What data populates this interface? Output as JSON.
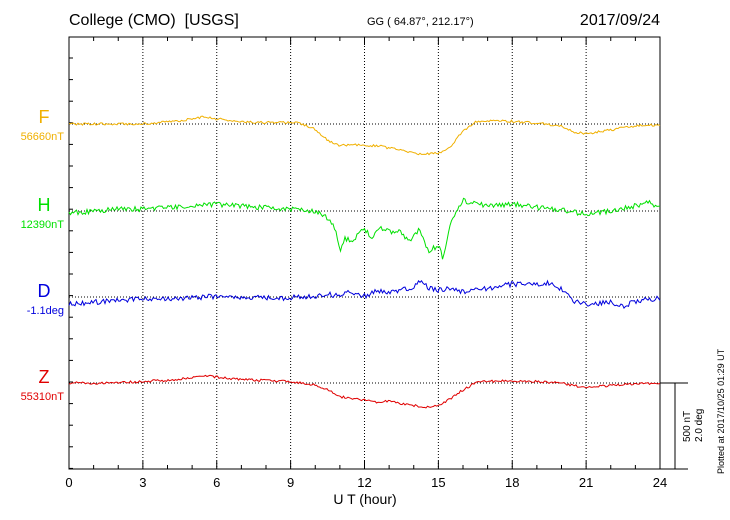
{
  "header": {
    "station": "College (CMO)  [USGS]",
    "coords": "GG ( 64.87°, 212.17°)",
    "date": "2017/09/24"
  },
  "footer": {
    "plotted": "Plotted at 2017/10/25 01:29 UT"
  },
  "scale": {
    "nt": "500 nT",
    "deg": "2.0 deg"
  },
  "chart_data": {
    "type": "line",
    "title": "College (CMO)  [USGS]",
    "xlabel": "U T (hour)",
    "xlim": [
      0,
      24
    ],
    "xticks": [
      0,
      3,
      6,
      9,
      12,
      15,
      18,
      21,
      24
    ],
    "grid": true,
    "series": [
      {
        "name": "F",
        "baseline_label": "56660nT",
        "color": "#f0b000",
        "hours": [
          0,
          1,
          2,
          3,
          4,
          5,
          5.5,
          6,
          7,
          8,
          9,
          9.5,
          10,
          10.5,
          11,
          11.5,
          12,
          12.5,
          13,
          13.5,
          14,
          14.5,
          15,
          15.5,
          16,
          16.5,
          17,
          18,
          19,
          20,
          20.5,
          21,
          22,
          23,
          24
        ],
        "offset_nt": [
          0,
          0,
          1,
          1,
          12,
          28,
          45,
          30,
          12,
          8,
          10,
          0,
          -30,
          -95,
          -125,
          -120,
          -128,
          -125,
          -140,
          -150,
          -170,
          -175,
          -170,
          -130,
          -40,
          10,
          20,
          15,
          5,
          -10,
          -50,
          -55,
          -35,
          -10,
          -5
        ]
      },
      {
        "name": "H",
        "baseline_label": "12390nT",
        "color": "#00e000",
        "hours": [
          0,
          1,
          2,
          3,
          4,
          5,
          6,
          7,
          8,
          9,
          10,
          10.5,
          10.8,
          11,
          11.2,
          11.5,
          12,
          12.3,
          12.6,
          13,
          13.4,
          13.8,
          14.2,
          14.6,
          15,
          15.2,
          15.5,
          16,
          17,
          18,
          19,
          20,
          21,
          22,
          23,
          23.5,
          24
        ],
        "offset_nt": [
          -10,
          0,
          10,
          10,
          20,
          30,
          40,
          30,
          20,
          10,
          0,
          -40,
          -100,
          -240,
          -160,
          -170,
          -100,
          -160,
          -90,
          -120,
          -110,
          -180,
          -110,
          -230,
          -200,
          -280,
          -60,
          60,
          30,
          40,
          20,
          10,
          -20,
          0,
          30,
          50,
          20
        ]
      },
      {
        "name": "D",
        "baseline_label": "-1.1deg",
        "color": "#0000dd",
        "hours": [
          0,
          1,
          2,
          3,
          4,
          5,
          6,
          7,
          8,
          9,
          10,
          10.5,
          11,
          11.5,
          12,
          12.5,
          13,
          13.5,
          14,
          14.3,
          14.6,
          15,
          15.5,
          16,
          17,
          18,
          19,
          19.5,
          20,
          20.5,
          21,
          22,
          22.5,
          23,
          24
        ],
        "offset_deg": [
          -0.16,
          -0.12,
          -0.08,
          -0.04,
          -0.04,
          -0.02,
          0.02,
          -0.02,
          -0.02,
          -0.02,
          0.02,
          0.06,
          0.04,
          0.12,
          0.02,
          0.14,
          0.08,
          0.18,
          0.22,
          0.4,
          0.2,
          0.16,
          0.22,
          0.12,
          0.2,
          0.3,
          0.28,
          0.32,
          0.18,
          -0.1,
          -0.16,
          -0.12,
          -0.22,
          -0.1,
          -0.02
        ]
      },
      {
        "name": "Z",
        "baseline_label": "55310nT",
        "color": "#e00000",
        "hours": [
          0,
          1,
          2,
          3,
          4,
          5,
          5.5,
          6,
          7,
          8,
          9,
          10,
          10.5,
          11,
          12,
          12.5,
          13,
          13.5,
          14,
          14.5,
          15,
          15.5,
          16,
          16.5,
          17,
          18,
          19,
          20,
          20.5,
          21,
          22,
          23,
          24
        ],
        "offset_nt": [
          0,
          0,
          0,
          10,
          15,
          30,
          45,
          35,
          20,
          15,
          10,
          -10,
          -40,
          -80,
          -100,
          -110,
          -105,
          -120,
          -130,
          -140,
          -130,
          -90,
          -40,
          0,
          10,
          12,
          8,
          0,
          -15,
          -25,
          -15,
          -5,
          0
        ]
      }
    ]
  }
}
